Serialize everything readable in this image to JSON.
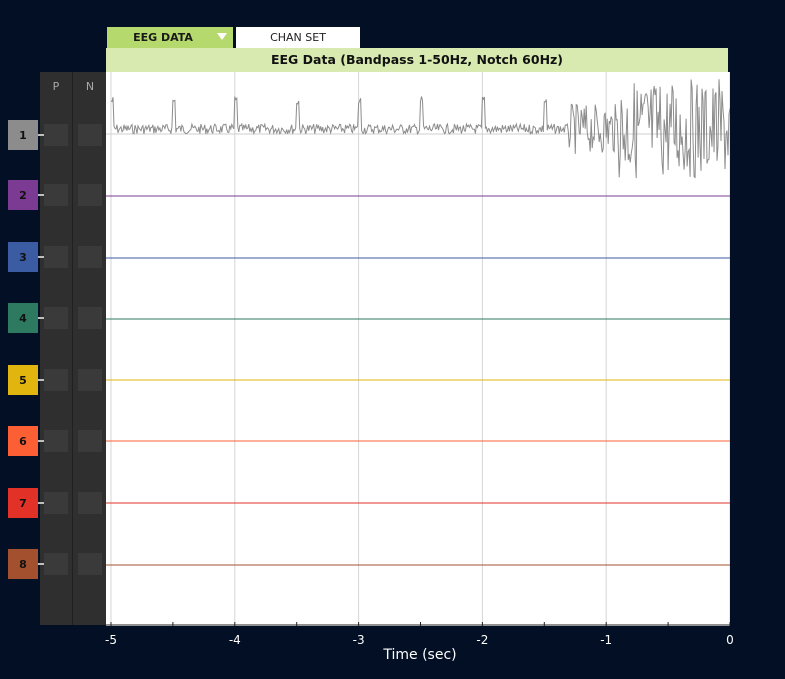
{
  "tabs": {
    "eeg_label": "EEG DATA",
    "chan_label": "CHAN SET"
  },
  "plot_title": "EEG Data (Bandpass 1-50Hz, Notch 60Hz)",
  "side_panel": {
    "p_label": "P",
    "n_label": "N"
  },
  "channels": [
    {
      "label": "1",
      "color": "#8c8c8c"
    },
    {
      "label": "2",
      "color": "#7b3b93"
    },
    {
      "label": "3",
      "color": "#3b5ba3"
    },
    {
      "label": "4",
      "color": "#2e7a61"
    },
    {
      "label": "5",
      "color": "#e2b40e"
    },
    {
      "label": "6",
      "color": "#fd5f35"
    },
    {
      "label": "7",
      "color": "#e23228"
    },
    {
      "label": "8",
      "color": "#a3502e"
    }
  ],
  "chart_data": {
    "type": "line",
    "title": "EEG Data (Bandpass 1-50Hz, Notch 60Hz)",
    "xlabel": "Time (sec)",
    "ylabel": "",
    "xlim": [
      -5,
      0
    ],
    "x_ticks": [
      "-5",
      "-4",
      "-3",
      "-2",
      "-1",
      "0"
    ],
    "grid": true,
    "series": [
      {
        "name": "1",
        "note": "noisy signal, large spikes toward -1 to 0 sec",
        "color": "#8c8c8c"
      },
      {
        "name": "2",
        "color": "#7b3b93"
      },
      {
        "name": "3",
        "color": "#3b5ba3"
      },
      {
        "name": "4",
        "color": "#2e7a61"
      },
      {
        "name": "5",
        "color": "#e2b40e"
      },
      {
        "name": "6",
        "color": "#fd5f35"
      },
      {
        "name": "7",
        "color": "#e23228"
      },
      {
        "name": "8",
        "color": "#a3502e"
      }
    ]
  },
  "x_axis": {
    "title": "Time (sec)",
    "ticks": [
      "-5",
      "-4",
      "-3",
      "-2",
      "-1",
      "0"
    ]
  }
}
